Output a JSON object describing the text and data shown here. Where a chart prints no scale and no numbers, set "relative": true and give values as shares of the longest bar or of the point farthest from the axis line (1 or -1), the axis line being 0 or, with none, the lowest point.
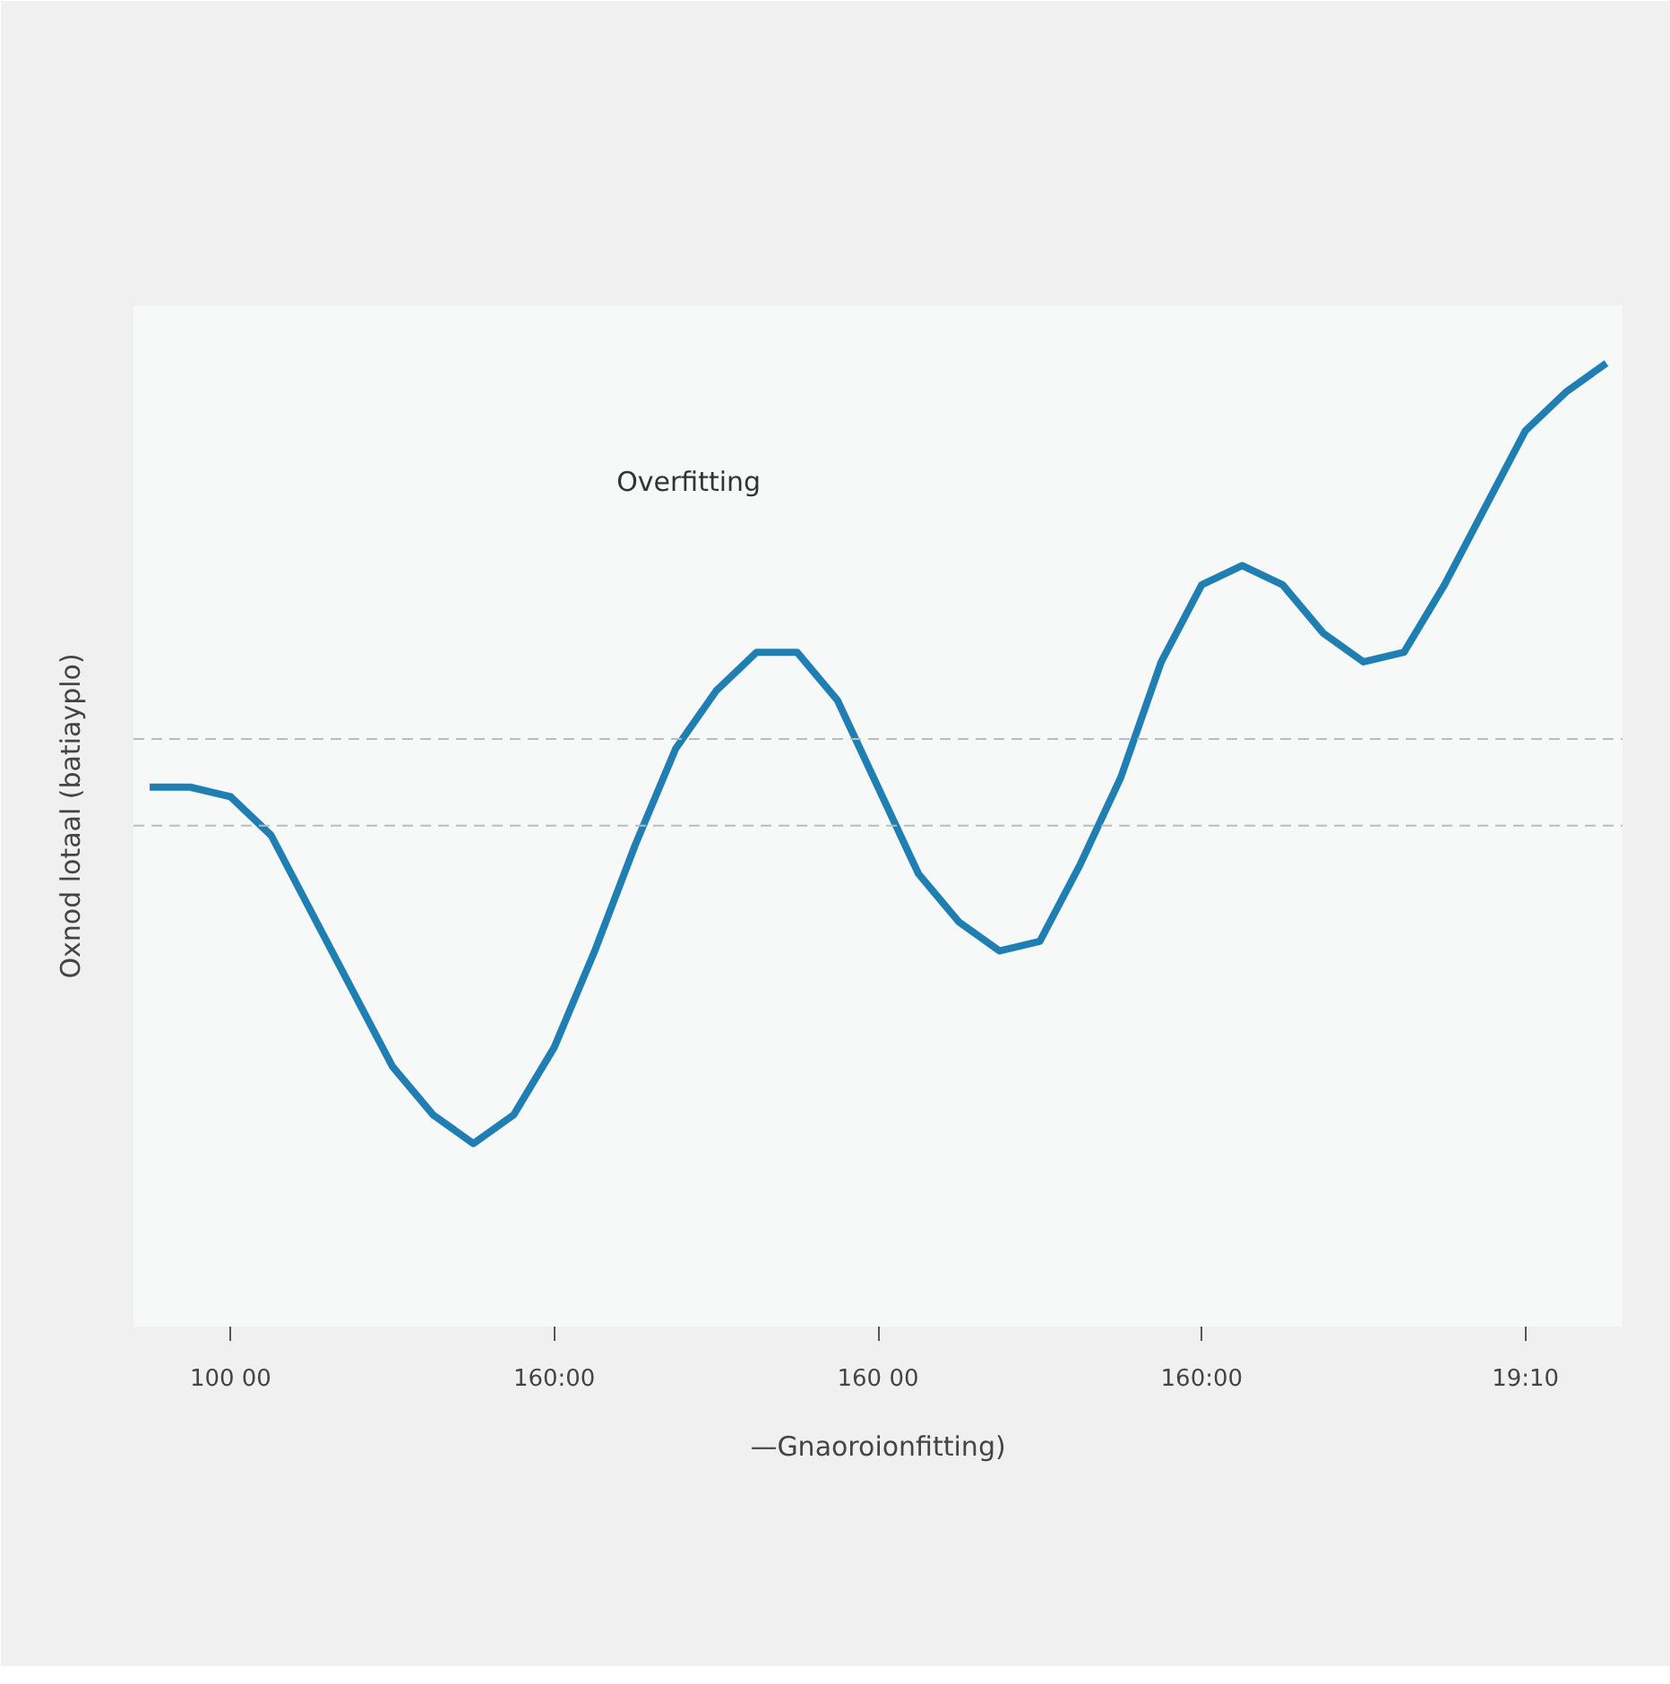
{
  "chart_data": {
    "type": "line",
    "relative": true,
    "xlabel": "—Gnaoroionfitting)",
    "ylabel": "Oxnod lotaal (batiayplo)",
    "annotations": [
      "Overfitting"
    ],
    "categories": [
      null,
      null,
      "100 00",
      null,
      null,
      null,
      null,
      null,
      null,
      null,
      "160:00",
      null,
      null,
      null,
      null,
      null,
      null,
      null,
      "160 00",
      null,
      null,
      null,
      null,
      null,
      null,
      null,
      "160:00",
      null,
      null,
      null,
      null,
      null,
      null,
      null,
      "19:10",
      null,
      null
    ],
    "series": [
      {
        "color": "#1f7fb3",
        "values": [
          0.56,
          0.56,
          0.55,
          0.51,
          0.43,
          0.35,
          0.27,
          0.22,
          0.19,
          0.22,
          0.29,
          0.39,
          0.5,
          0.6,
          0.66,
          0.7,
          0.7,
          0.65,
          0.56,
          0.47,
          0.42,
          0.39,
          0.4,
          0.48,
          0.57,
          0.69,
          0.77,
          0.79,
          0.77,
          0.72,
          0.69,
          0.7,
          0.77,
          0.85,
          0.93,
          0.97,
          1.0
        ]
      }
    ],
    "ref_lines": [
      {
        "axis": "y",
        "value": 0.61,
        "color": "#b8bcbc",
        "line_style": "dashed"
      },
      {
        "axis": "y",
        "value": 0.52,
        "color": "#b8bcbc",
        "line_style": "dashed"
      }
    ],
    "grid": false
  }
}
